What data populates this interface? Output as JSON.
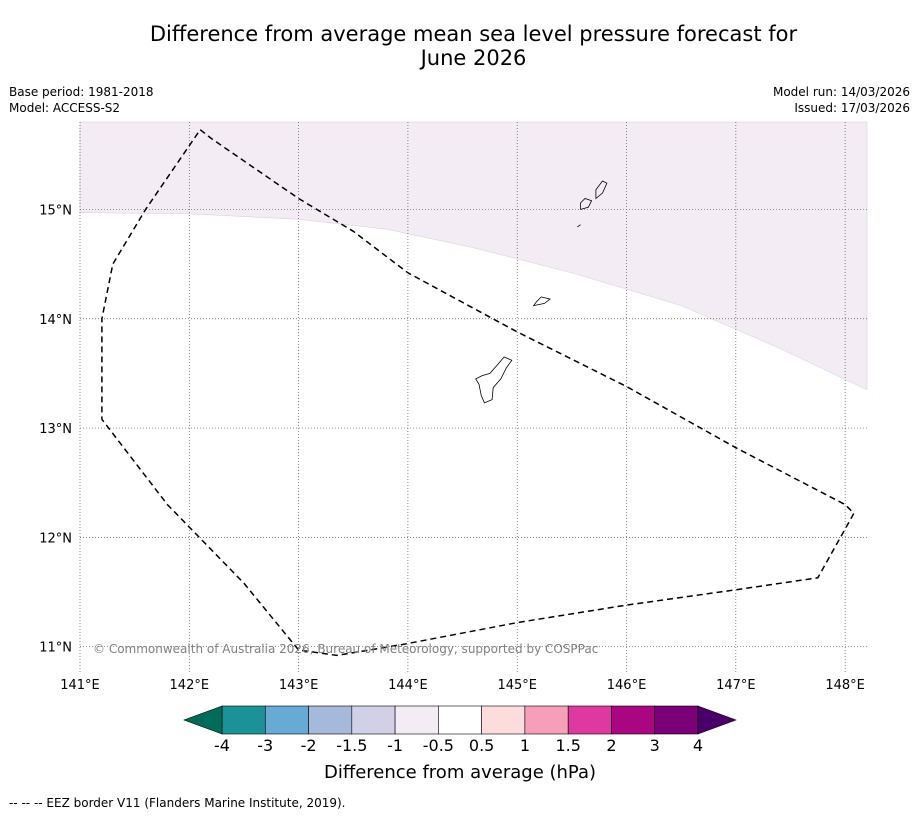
{
  "title_line1": "Difference from average mean sea level pressure forecast for",
  "title_line2": "June 2026",
  "header": {
    "base_period": "Base period: 1981-2018",
    "model": "Model: ACCESS-S2",
    "model_run": "Model run: 14/03/2026",
    "issued": "Issued: 17/03/2026"
  },
  "map": {
    "lon_range": [
      141.0,
      148.2
    ],
    "lat_range": [
      10.75,
      15.8
    ],
    "lon_ticks": [
      141,
      142,
      143,
      144,
      145,
      146,
      147,
      148
    ],
    "lon_tick_labels": [
      "141°E",
      "142°E",
      "143°E",
      "144°E",
      "145°E",
      "146°E",
      "147°E",
      "148°E"
    ],
    "lat_ticks": [
      11,
      12,
      13,
      14,
      15
    ],
    "lat_tick_labels": [
      "11°N",
      "12°N",
      "13°N",
      "14°N",
      "15°N"
    ],
    "anomaly_fill_color": "#f4ecf5",
    "anomaly_boundary": [
      [
        141.0,
        14.97
      ],
      [
        142.0,
        14.96
      ],
      [
        143.0,
        14.91
      ],
      [
        143.8,
        14.82
      ],
      [
        144.6,
        14.65
      ],
      [
        145.5,
        14.42
      ],
      [
        146.5,
        14.12
      ],
      [
        147.4,
        13.73
      ],
      [
        148.2,
        13.35
      ]
    ],
    "eez_border": [
      [
        142.1,
        15.73
      ],
      [
        142.2,
        15.65
      ],
      [
        143.0,
        15.1
      ],
      [
        143.5,
        14.8
      ],
      [
        144.0,
        14.42
      ],
      [
        144.5,
        14.15
      ],
      [
        145.0,
        13.88
      ],
      [
        146.0,
        13.38
      ],
      [
        147.0,
        12.82
      ],
      [
        148.0,
        12.3
      ],
      [
        148.08,
        12.22
      ],
      [
        147.75,
        11.63
      ],
      [
        147.0,
        11.52
      ],
      [
        146.0,
        11.38
      ],
      [
        145.0,
        11.22
      ],
      [
        143.95,
        11.02
      ],
      [
        143.35,
        10.92
      ],
      [
        143.0,
        10.97
      ],
      [
        142.5,
        11.58
      ],
      [
        141.8,
        12.3
      ],
      [
        141.2,
        13.08
      ],
      [
        141.2,
        14.0
      ],
      [
        141.3,
        14.5
      ],
      [
        141.6,
        15.0
      ],
      [
        142.1,
        15.73
      ]
    ],
    "islands": [
      [
        [
          144.62,
          13.45
        ],
        [
          144.65,
          13.4
        ],
        [
          144.67,
          13.3
        ],
        [
          144.7,
          13.23
        ],
        [
          144.77,
          13.26
        ],
        [
          144.78,
          13.37
        ],
        [
          144.85,
          13.45
        ],
        [
          144.9,
          13.55
        ],
        [
          144.95,
          13.62
        ],
        [
          144.88,
          13.65
        ],
        [
          144.82,
          13.58
        ],
        [
          144.75,
          13.5
        ],
        [
          144.68,
          13.48
        ]
      ],
      [
        [
          145.15,
          14.12
        ],
        [
          145.25,
          14.14
        ],
        [
          145.3,
          14.18
        ],
        [
          145.22,
          14.2
        ],
        [
          145.18,
          14.16
        ]
      ],
      [
        [
          145.58,
          15.0
        ],
        [
          145.65,
          15.02
        ],
        [
          145.68,
          15.08
        ],
        [
          145.62,
          15.1
        ],
        [
          145.58,
          15.06
        ]
      ],
      [
        [
          145.72,
          15.1
        ],
        [
          145.78,
          15.15
        ],
        [
          145.82,
          15.24
        ],
        [
          145.78,
          15.26
        ],
        [
          145.72,
          15.18
        ]
      ],
      [
        [
          145.55,
          14.84
        ],
        [
          145.58,
          14.86
        ]
      ]
    ],
    "copyright": "© Commonwealth of Australia 2026, Bureau of Meteorology, supported by COSPPac"
  },
  "colorbar": {
    "label": "Difference from average (hPa)",
    "colors": [
      "#1b9297",
      "#67aad4",
      "#a5b9da",
      "#d1d0e7",
      "#f4ecf5",
      "#ffffff",
      "#fddcdd",
      "#f79fba",
      "#dd39a1",
      "#ab0681",
      "#7b0179"
    ],
    "under_color": "#016c59",
    "over_color": "#4a006a",
    "boundaries": [
      -4,
      -3,
      -2,
      -1.5,
      -1,
      -0.5,
      0.5,
      1,
      1.5,
      2,
      3,
      4
    ],
    "tick_labels": [
      "-4",
      "-3",
      "-2",
      "-1.5",
      "-1",
      "-0.5",
      "0.5",
      "1",
      "1.5",
      "2",
      "3",
      "4"
    ]
  },
  "footnote": "-- -- -- EEZ border V11 (Flanders Marine Institute, 2019)."
}
